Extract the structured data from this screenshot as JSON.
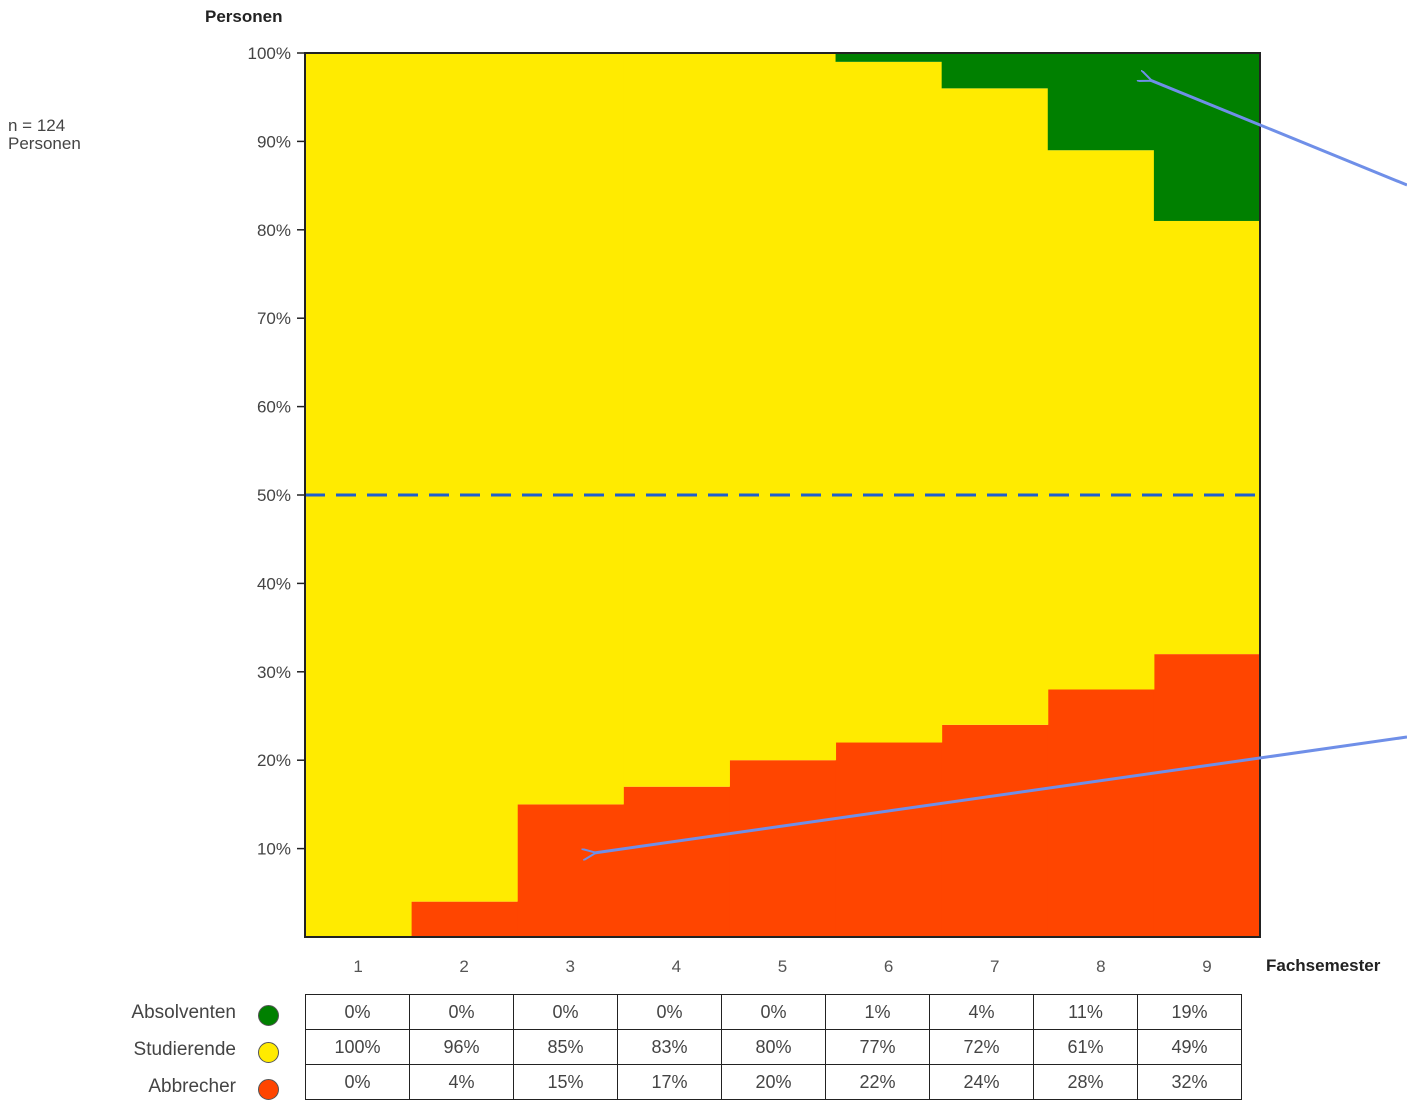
{
  "chart_data": {
    "type": "area",
    "stacked": true,
    "ylabel": "Personen",
    "xlabel": "Fachsemester",
    "note": [
      "n = 124",
      "Personen"
    ],
    "categories": [
      "1",
      "2",
      "3",
      "4",
      "5",
      "6",
      "7",
      "8",
      "9"
    ],
    "ylim": [
      0,
      100
    ],
    "yticks": [
      "10%",
      "20%",
      "30%",
      "40%",
      "50%",
      "60%",
      "70%",
      "80%",
      "90%",
      "100%"
    ],
    "reference_line": {
      "y": 50,
      "style": "dashed",
      "color": "#1f5fcc"
    },
    "series": [
      {
        "name": "Abbrecher",
        "color": "#ff4500",
        "values": [
          0,
          4,
          15,
          17,
          20,
          22,
          24,
          28,
          32
        ],
        "labels": [
          "0%",
          "4%",
          "15%",
          "17%",
          "20%",
          "22%",
          "24%",
          "28%",
          "32%"
        ]
      },
      {
        "name": "Studierende",
        "color": "#ffeb00",
        "values": [
          100,
          96,
          85,
          83,
          80,
          77,
          72,
          61,
          49
        ],
        "labels": [
          "100%",
          "96%",
          "85%",
          "83%",
          "80%",
          "77%",
          "72%",
          "61%",
          "49%"
        ]
      },
      {
        "name": "Absolventen",
        "color": "#008000",
        "values": [
          0,
          0,
          0,
          0,
          0,
          1,
          4,
          11,
          19
        ],
        "labels": [
          "0%",
          "0%",
          "0%",
          "0%",
          "0%",
          "1%",
          "4%",
          "11%",
          "19%"
        ]
      }
    ],
    "table_row_order": [
      "Absolventen",
      "Studierende",
      "Abbrecher"
    ],
    "annotation_arrow_color": "#6f8fe8"
  }
}
